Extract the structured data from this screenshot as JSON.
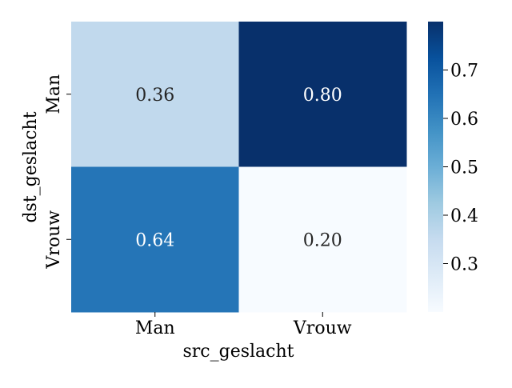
{
  "chart_data": {
    "type": "heatmap",
    "title": "",
    "xlabel": "src_geslacht",
    "ylabel": "dst_geslacht",
    "x_categories": [
      "Man",
      "Vrouw"
    ],
    "y_categories": [
      "Man",
      "Vrouw"
    ],
    "values": [
      [
        0.36,
        0.8
      ],
      [
        0.64,
        0.2
      ]
    ],
    "value_labels": [
      [
        "0.36",
        "0.80"
      ],
      [
        "0.64",
        "0.20"
      ]
    ],
    "colormap": "Blues",
    "vmin": 0.2,
    "vmax": 0.8,
    "colorbar_ticks": [
      0.3,
      0.4,
      0.5,
      0.6,
      0.7
    ],
    "colorbar_tick_labels": [
      "0.3",
      "0.4",
      "0.5",
      "0.6",
      "0.7"
    ]
  }
}
